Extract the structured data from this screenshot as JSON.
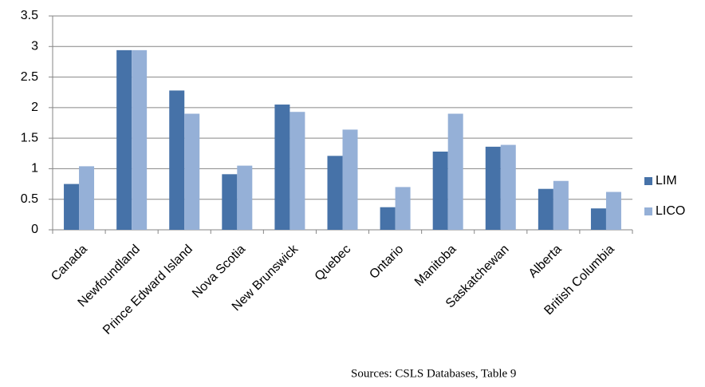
{
  "chart_data": {
    "type": "bar",
    "categories": [
      "Canada",
      "Newfoundland",
      "Prince Edward Island",
      "Nova Scotia",
      "New Brunswick",
      "Quebec",
      "Ontario",
      "Manitoba",
      "Saskatchewan",
      "Alberta",
      "British Columbia"
    ],
    "series": [
      {
        "name": "LIM",
        "color": "#4672a8",
        "values": [
          0.75,
          2.94,
          2.28,
          0.91,
          2.05,
          1.21,
          0.37,
          1.28,
          1.36,
          0.67,
          0.35
        ]
      },
      {
        "name": "LICO",
        "color": "#95b0d7",
        "values": [
          1.04,
          2.94,
          1.9,
          1.05,
          1.93,
          1.64,
          0.7,
          1.9,
          1.39,
          0.8,
          0.62
        ]
      }
    ],
    "ylim": [
      0,
      3.5
    ],
    "yticks": [
      0,
      0.5,
      1,
      1.5,
      2,
      2.5,
      3,
      3.5
    ],
    "grid": true,
    "legend": "right",
    "source": "Sources: CSLS Databases, Table 9"
  }
}
